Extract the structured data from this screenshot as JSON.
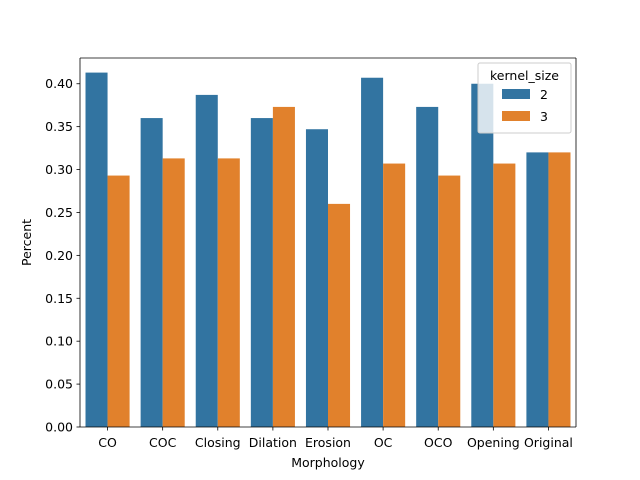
{
  "chart_data": {
    "type": "bar",
    "title": "",
    "xlabel": "Morphology",
    "ylabel": "Percent",
    "ylim": [
      0,
      0.43
    ],
    "yticks": [
      "0.00",
      "0.05",
      "0.10",
      "0.15",
      "0.20",
      "0.25",
      "0.30",
      "0.35",
      "0.40"
    ],
    "categories": [
      "CO",
      "COC",
      "Closing",
      "Dilation",
      "Erosion",
      "OC",
      "OCO",
      "Opening",
      "Original"
    ],
    "legend_title": "kernel_size",
    "legend_position": "top-right",
    "grid": false,
    "series": [
      {
        "name": "2",
        "color": "#3274a1",
        "values": [
          0.413,
          0.36,
          0.387,
          0.36,
          0.347,
          0.407,
          0.373,
          0.4,
          0.32
        ]
      },
      {
        "name": "3",
        "color": "#e1812c",
        "values": [
          0.293,
          0.313,
          0.313,
          0.373,
          0.26,
          0.307,
          0.293,
          0.307,
          0.32
        ]
      }
    ]
  }
}
